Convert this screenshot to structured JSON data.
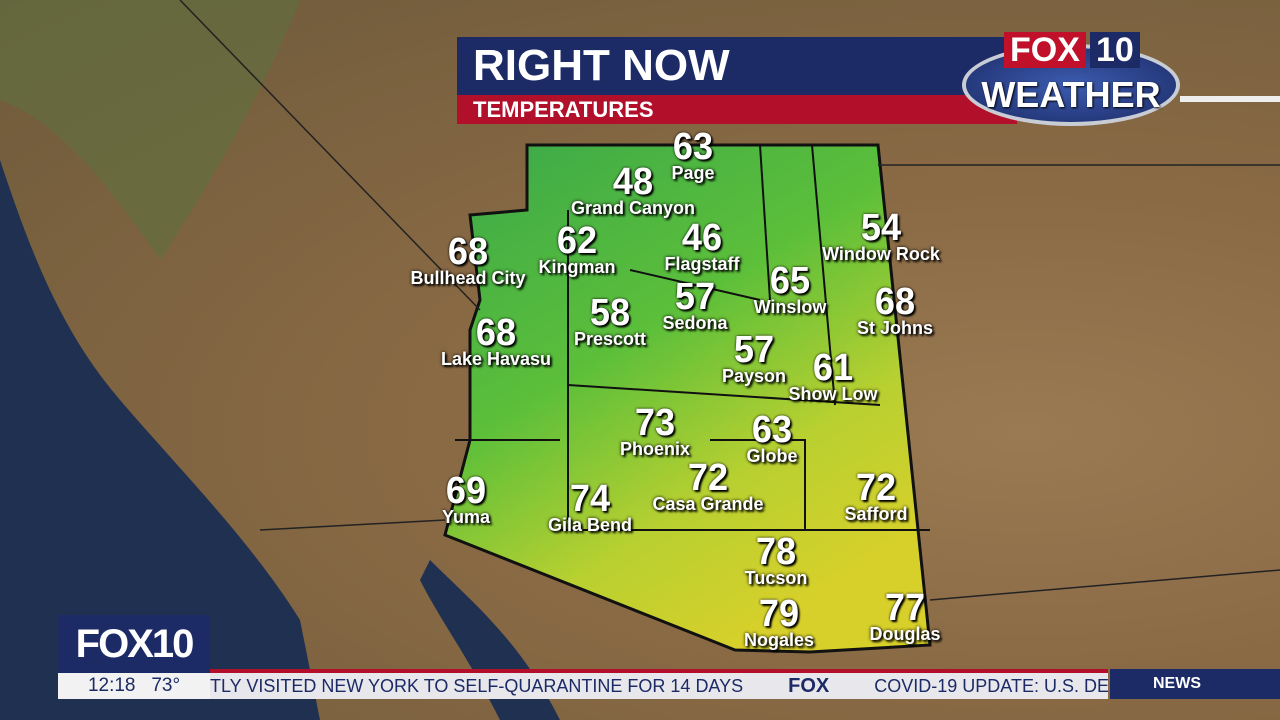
{
  "header": {
    "title": "RIGHT NOW",
    "subtitle": "TEMPERATURES"
  },
  "logo": {
    "fox": "FOX",
    "ten": "10",
    "weather": "WEATHER"
  },
  "map": {
    "region": "Arizona",
    "unit": "°F",
    "colors": {
      "cool": "#2fa84a",
      "warm": "#e0d020"
    },
    "cities": [
      {
        "name": "Page",
        "temp": "63"
      },
      {
        "name": "Grand Canyon",
        "temp": "48"
      },
      {
        "name": "Bullhead City",
        "temp": "68"
      },
      {
        "name": "Kingman",
        "temp": "62"
      },
      {
        "name": "Flagstaff",
        "temp": "46"
      },
      {
        "name": "Window Rock",
        "temp": "54"
      },
      {
        "name": "Winslow",
        "temp": "65"
      },
      {
        "name": "St Johns",
        "temp": "68"
      },
      {
        "name": "Prescott",
        "temp": "58"
      },
      {
        "name": "Sedona",
        "temp": "57"
      },
      {
        "name": "Lake Havasu",
        "temp": "68"
      },
      {
        "name": "Payson",
        "temp": "57"
      },
      {
        "name": "Show Low",
        "temp": "61"
      },
      {
        "name": "Phoenix",
        "temp": "73"
      },
      {
        "name": "Globe",
        "temp": "63"
      },
      {
        "name": "Casa Grande",
        "temp": "72"
      },
      {
        "name": "Safford",
        "temp": "72"
      },
      {
        "name": "Yuma",
        "temp": "69"
      },
      {
        "name": "Gila Bend",
        "temp": "74"
      },
      {
        "name": "Tucson",
        "temp": "78"
      },
      {
        "name": "Nogales",
        "temp": "79"
      },
      {
        "name": "Douglas",
        "temp": "77"
      }
    ]
  },
  "bug": {
    "station": "FOX10",
    "time": "12:18",
    "temp": "73°"
  },
  "ticker": {
    "text1": "TLY VISITED NEW YORK TO SELF-QUARANTINE FOR 14 DAYS",
    "sep": "FOX",
    "text2": "COVID-19 UPDATE: U.S. DE",
    "section": "NEWS"
  }
}
